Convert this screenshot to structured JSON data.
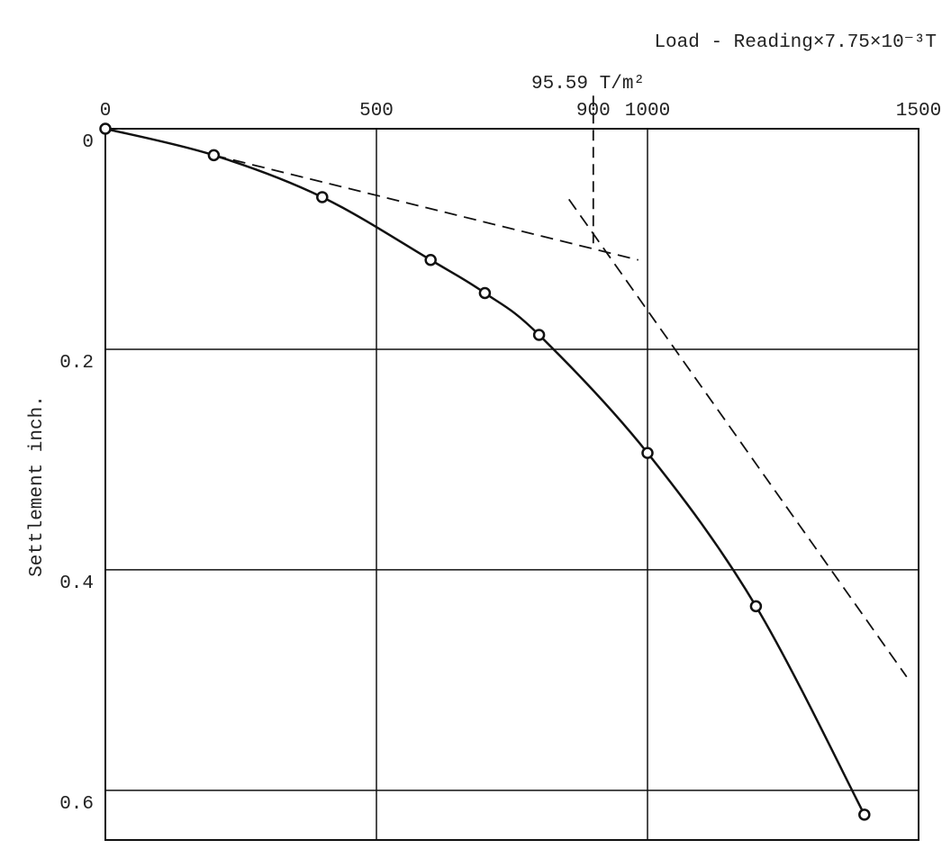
{
  "chart_data": {
    "type": "line",
    "title": "Load - Reading×7.75×10⁻³T",
    "annotation": "95.59 T/m²",
    "ylabel": "Settlement inch.",
    "x": [
      0,
      200,
      400,
      600,
      700,
      800,
      1000,
      1200,
      1400
    ],
    "series": [
      {
        "color": "#111111",
        "values": [
          0,
          0.024,
          0.062,
          0.119,
          0.149,
          0.187,
          0.294,
          0.433,
          0.622
        ]
      }
    ],
    "xlim": [
      0,
      1500
    ],
    "xticks": [
      0,
      500,
      1000,
      1500
    ],
    "ylim": [
      0,
      0.645
    ],
    "yticks": [
      0,
      0.2,
      0.4,
      0.6
    ],
    "y_inverted": true,
    "grid": true,
    "marker_line": {
      "x": 900,
      "y": [
        -0.03,
        0.106
      ]
    },
    "dashed_lines": [
      {
        "x": [
          200,
          983
        ],
        "y": [
          0.024,
          0.119
        ]
      },
      {
        "x": [
          855,
          1478
        ],
        "y": [
          0.064,
          0.497
        ]
      }
    ]
  }
}
